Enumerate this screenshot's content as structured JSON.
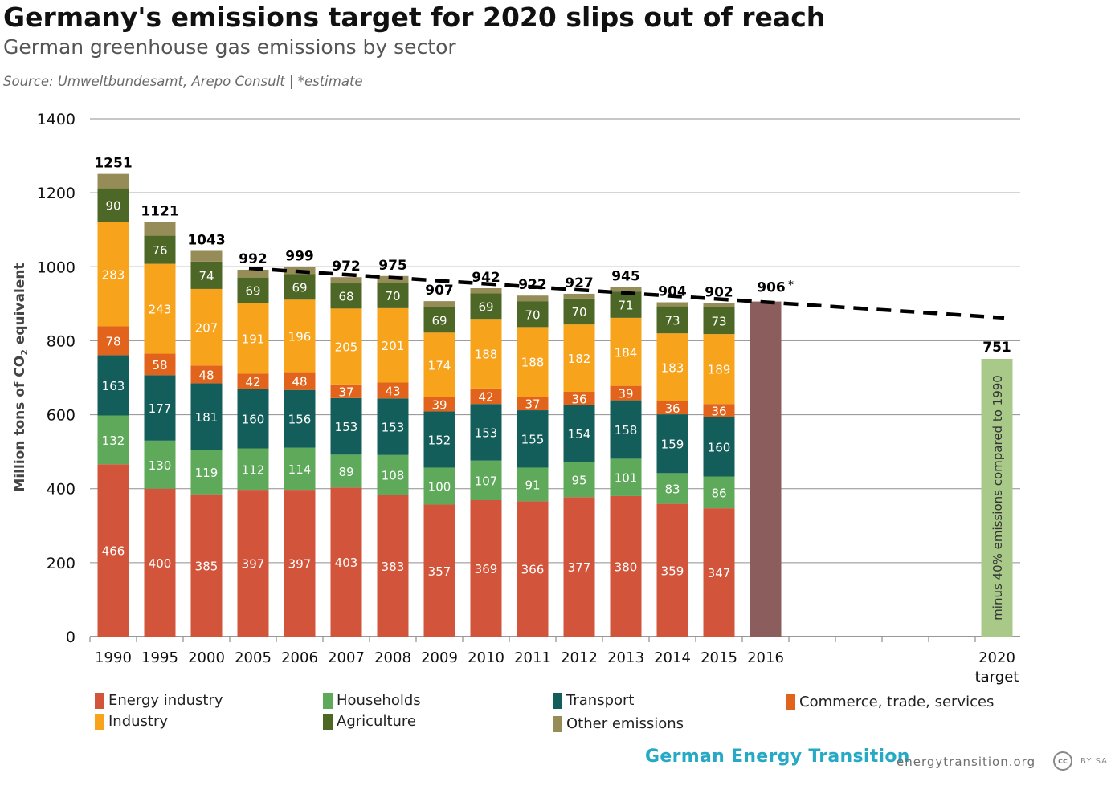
{
  "header": {
    "title": "Germany's emissions target for 2020 slips out of reach",
    "subtitle": "German greenhouse gas emissions by sector",
    "source": "Source: Umweltbundesamt, Arepo Consult  |  *estimate"
  },
  "chart_data": {
    "type": "bar",
    "stacked": true,
    "ylabel_main": "Million tons of CO",
    "ylabel_sub": "2",
    "ylabel_tail": " equivalent",
    "ylim": [
      0,
      1400
    ],
    "yticks": [
      "0",
      "200",
      "400",
      "600",
      "800",
      "1000",
      "1200",
      "1400"
    ],
    "ytick_values": [
      0,
      200,
      400,
      600,
      800,
      1000,
      1200,
      1400
    ],
    "grid": true,
    "categories": [
      "1990",
      "1995",
      "2000",
      "2005",
      "2006",
      "2007",
      "2008",
      "2009",
      "2010",
      "2011",
      "2012",
      "2013",
      "2014",
      "2015"
    ],
    "series": [
      {
        "name": "Energy industry",
        "color": "#d2553b",
        "values": [
          466,
          400,
          385,
          397,
          397,
          403,
          383,
          357,
          369,
          366,
          377,
          380,
          359,
          347
        ]
      },
      {
        "name": "Households",
        "color": "#5ea95a",
        "values": [
          132,
          130,
          119,
          112,
          114,
          89,
          108,
          100,
          107,
          91,
          95,
          101,
          83,
          86
        ]
      },
      {
        "name": "Transport",
        "color": "#135d5a",
        "values": [
          163,
          177,
          181,
          160,
          156,
          153,
          153,
          152,
          153,
          155,
          154,
          158,
          159,
          160
        ]
      },
      {
        "name": "Commerce, trade, services",
        "color": "#e2641c",
        "values": [
          78,
          58,
          48,
          42,
          48,
          37,
          43,
          39,
          42,
          37,
          36,
          39,
          36,
          36
        ]
      },
      {
        "name": "Industry",
        "color": "#f8a31c",
        "values": [
          283,
          243,
          207,
          191,
          196,
          205,
          201,
          174,
          188,
          188,
          182,
          184,
          183,
          189
        ]
      },
      {
        "name": "Agriculture",
        "color": "#4d6726",
        "values": [
          90,
          76,
          74,
          69,
          69,
          68,
          70,
          69,
          69,
          70,
          70,
          71,
          73,
          73
        ]
      },
      {
        "name": "Other emissions",
        "color": "#968c58",
        "values": [
          39,
          37,
          29,
          21,
          19,
          17,
          17,
          16,
          14,
          15,
          13,
          12,
          11,
          11
        ]
      }
    ],
    "totals": [
      "1251",
      "1121",
      "1043",
      "992",
      "999",
      "972",
      "975",
      "907",
      "942",
      "922",
      "927",
      "945",
      "904",
      "902"
    ],
    "total_values": [
      1251,
      1121,
      1043,
      992,
      999,
      972,
      975,
      907,
      942,
      922,
      927,
      945,
      904,
      902
    ],
    "estimate": {
      "category": "2016",
      "value": 906,
      "label": "906",
      "marker": "*",
      "color": "#8c5d5d"
    },
    "target": {
      "category_line1": "2020",
      "category_line2": "target",
      "value": 751,
      "label": "751",
      "note": "minus 40% emissions compared to 1990",
      "color": "#a9c989"
    },
    "trend_line": {
      "from_value": 996,
      "to_value": 862,
      "style": "dashed",
      "color": "#000000"
    },
    "legend": [
      {
        "name": "Energy industry",
        "color": "#d2553b"
      },
      {
        "name": "Households",
        "color": "#5ea95a"
      },
      {
        "name": "Transport",
        "color": "#135d5a"
      },
      {
        "name": "Commerce, trade, services",
        "color": "#e2641c"
      },
      {
        "name": "Industry",
        "color": "#f8a31c"
      },
      {
        "name": "Agriculture",
        "color": "#4d6726"
      },
      {
        "name": "Other emissions",
        "color": "#968c58"
      }
    ]
  },
  "footer": {
    "brand": "German Energy Transition",
    "brand_color": "#25a9c4",
    "website": "energytransition.org",
    "license_badge": "cc",
    "license_text": "BY SA"
  }
}
